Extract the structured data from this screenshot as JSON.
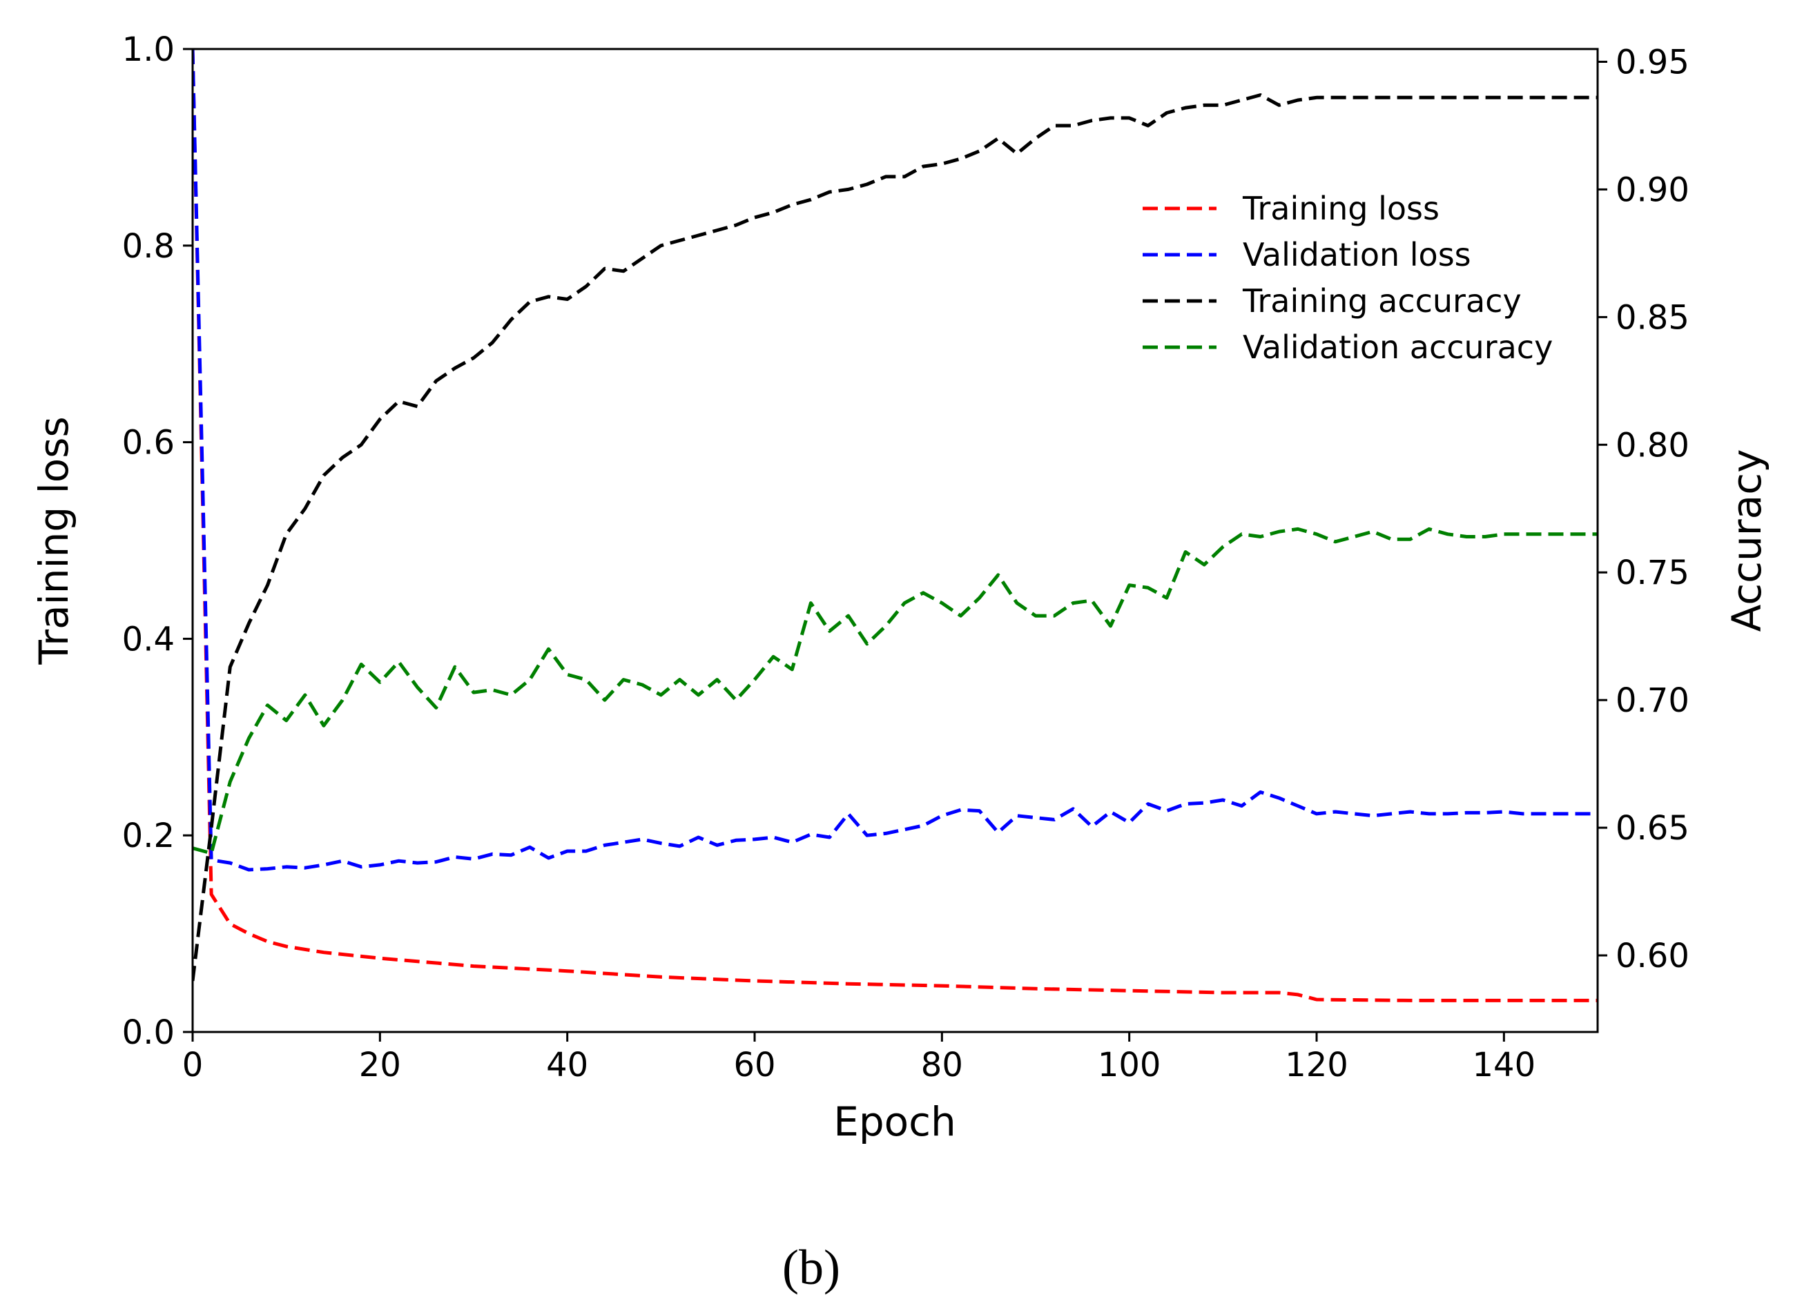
{
  "panel_label": "(b)",
  "chart_data": {
    "type": "line",
    "title": "",
    "xlabel": "Epoch",
    "ylabel_left": "Training loss",
    "ylabel_right": "Accuracy",
    "xlim": [
      0,
      150
    ],
    "ylim_left": [
      0,
      1.0
    ],
    "ylim_right": [
      0.57,
      0.955
    ],
    "x_ticks": [
      0,
      20,
      40,
      60,
      80,
      100,
      120,
      140
    ],
    "x_tick_labels": [
      "0",
      "20",
      "40",
      "60",
      "80",
      "100",
      "120",
      "140"
    ],
    "y_left_ticks": [
      0.0,
      0.2,
      0.4,
      0.6,
      0.8,
      1.0
    ],
    "y_left_tick_labels": [
      "0.0",
      "0.2",
      "0.4",
      "0.6",
      "0.8",
      "1.0"
    ],
    "y_right_ticks": [
      0.6,
      0.65,
      0.7,
      0.75,
      0.8,
      0.85,
      0.9,
      0.95
    ],
    "y_right_tick_labels": [
      "0.60",
      "0.65",
      "0.70",
      "0.75",
      "0.80",
      "0.85",
      "0.90",
      "0.95"
    ],
    "grid": false,
    "legend_position": "upper-right",
    "series": [
      {
        "name": "Training loss",
        "axis": "left",
        "color": "#ff0000",
        "x": [
          0,
          2,
          4,
          6,
          8,
          10,
          14,
          20,
          30,
          40,
          50,
          60,
          70,
          80,
          90,
          100,
          110,
          116,
          118,
          120,
          130,
          140,
          150
        ],
        "values": [
          1.0,
          0.14,
          0.11,
          0.1,
          0.092,
          0.087,
          0.081,
          0.075,
          0.067,
          0.062,
          0.056,
          0.052,
          0.049,
          0.047,
          0.044,
          0.042,
          0.04,
          0.04,
          0.038,
          0.033,
          0.032,
          0.032,
          0.032
        ]
      },
      {
        "name": "Validation loss",
        "axis": "left",
        "color": "#0000ff",
        "x": [
          0,
          2,
          4,
          6,
          8,
          10,
          12,
          14,
          16,
          18,
          20,
          22,
          24,
          26,
          28,
          30,
          32,
          34,
          36,
          38,
          40,
          42,
          44,
          46,
          48,
          50,
          52,
          54,
          56,
          58,
          60,
          62,
          64,
          66,
          68,
          70,
          72,
          74,
          76,
          78,
          80,
          82,
          84,
          86,
          88,
          90,
          92,
          94,
          96,
          98,
          100,
          102,
          104,
          106,
          108,
          110,
          112,
          114,
          116,
          118,
          120,
          122,
          124,
          126,
          128,
          130,
          132,
          134,
          136,
          138,
          140,
          142,
          144,
          146,
          148,
          150
        ],
        "values": [
          1.0,
          0.175,
          0.172,
          0.165,
          0.166,
          0.168,
          0.167,
          0.17,
          0.174,
          0.168,
          0.17,
          0.174,
          0.172,
          0.173,
          0.178,
          0.176,
          0.181,
          0.18,
          0.188,
          0.177,
          0.184,
          0.184,
          0.19,
          0.193,
          0.196,
          0.192,
          0.189,
          0.198,
          0.19,
          0.195,
          0.196,
          0.198,
          0.193,
          0.201,
          0.198,
          0.222,
          0.2,
          0.202,
          0.206,
          0.21,
          0.22,
          0.226,
          0.225,
          0.203,
          0.22,
          0.218,
          0.216,
          0.227,
          0.209,
          0.224,
          0.213,
          0.232,
          0.225,
          0.232,
          0.233,
          0.236,
          0.23,
          0.244,
          0.238,
          0.23,
          0.222,
          0.224,
          0.222,
          0.22,
          0.222,
          0.224,
          0.222,
          0.222,
          0.223,
          0.223,
          0.224,
          0.222,
          0.222,
          0.222,
          0.222,
          0.222
        ]
      },
      {
        "name": "Training accuracy",
        "axis": "right",
        "color": "#000000",
        "x": [
          0,
          2,
          4,
          6,
          8,
          10,
          12,
          14,
          16,
          18,
          20,
          22,
          24,
          26,
          28,
          30,
          32,
          34,
          36,
          38,
          40,
          42,
          44,
          46,
          48,
          50,
          52,
          54,
          56,
          58,
          60,
          62,
          64,
          66,
          68,
          70,
          72,
          74,
          76,
          78,
          80,
          82,
          84,
          86,
          88,
          90,
          92,
          94,
          96,
          98,
          100,
          102,
          104,
          106,
          108,
          110,
          112,
          114,
          116,
          118,
          120,
          124,
          128,
          132,
          136,
          140,
          144,
          148,
          150
        ],
        "values": [
          0.59,
          0.65,
          0.713,
          0.73,
          0.745,
          0.765,
          0.775,
          0.788,
          0.795,
          0.8,
          0.81,
          0.817,
          0.815,
          0.825,
          0.83,
          0.834,
          0.84,
          0.849,
          0.856,
          0.858,
          0.857,
          0.862,
          0.869,
          0.868,
          0.873,
          0.878,
          0.88,
          0.882,
          0.884,
          0.886,
          0.889,
          0.891,
          0.894,
          0.896,
          0.899,
          0.9,
          0.902,
          0.905,
          0.905,
          0.909,
          0.91,
          0.912,
          0.915,
          0.92,
          0.914,
          0.92,
          0.925,
          0.925,
          0.927,
          0.928,
          0.928,
          0.925,
          0.93,
          0.932,
          0.933,
          0.933,
          0.935,
          0.937,
          0.933,
          0.935,
          0.936,
          0.936,
          0.936,
          0.936,
          0.936,
          0.936,
          0.936,
          0.936,
          0.936
        ]
      },
      {
        "name": "Validation accuracy",
        "axis": "right",
        "color": "#008000",
        "x": [
          0,
          2,
          4,
          6,
          8,
          10,
          12,
          14,
          16,
          18,
          20,
          22,
          24,
          26,
          28,
          30,
          32,
          34,
          36,
          38,
          40,
          42,
          44,
          46,
          48,
          50,
          52,
          54,
          56,
          58,
          60,
          62,
          64,
          66,
          68,
          70,
          72,
          74,
          76,
          78,
          80,
          82,
          84,
          86,
          88,
          90,
          92,
          94,
          96,
          98,
          100,
          102,
          104,
          106,
          108,
          110,
          112,
          114,
          116,
          118,
          120,
          122,
          124,
          126,
          128,
          130,
          132,
          134,
          136,
          138,
          140,
          142,
          144,
          146,
          148,
          150
        ],
        "values": [
          0.642,
          0.64,
          0.668,
          0.685,
          0.698,
          0.692,
          0.702,
          0.69,
          0.7,
          0.714,
          0.707,
          0.715,
          0.705,
          0.697,
          0.713,
          0.703,
          0.704,
          0.702,
          0.708,
          0.72,
          0.71,
          0.708,
          0.7,
          0.708,
          0.706,
          0.702,
          0.708,
          0.702,
          0.708,
          0.7,
          0.708,
          0.717,
          0.712,
          0.738,
          0.727,
          0.733,
          0.722,
          0.729,
          0.738,
          0.742,
          0.738,
          0.733,
          0.74,
          0.749,
          0.738,
          0.733,
          0.733,
          0.738,
          0.739,
          0.729,
          0.745,
          0.744,
          0.74,
          0.758,
          0.753,
          0.76,
          0.765,
          0.764,
          0.766,
          0.767,
          0.765,
          0.762,
          0.764,
          0.766,
          0.763,
          0.763,
          0.767,
          0.765,
          0.764,
          0.764,
          0.765,
          0.765,
          0.765,
          0.765,
          0.765,
          0.765
        ]
      }
    ]
  }
}
